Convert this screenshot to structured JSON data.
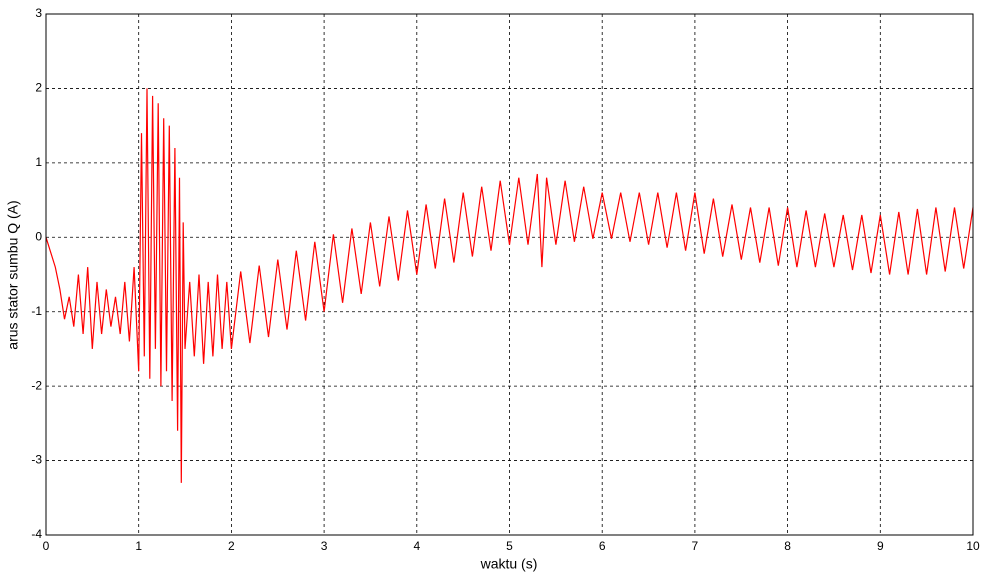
{
  "chart_data": {
    "type": "line",
    "xlabel": "waktu (s)",
    "ylabel": "arus stator sumbu Q (A)",
    "xlim": [
      0,
      10
    ],
    "xticks": [
      0,
      1,
      2,
      3,
      4,
      5,
      6,
      7,
      8,
      9,
      10
    ],
    "ylim": [
      -4,
      3
    ],
    "yticks": [
      -4,
      -3,
      -2,
      -1,
      0,
      1,
      2,
      3
    ],
    "grid": true,
    "series": [
      {
        "color": "#ff0000",
        "x": [
          0,
          0.1,
          0.15,
          0.2,
          0.25,
          0.3,
          0.35,
          0.4,
          0.45,
          0.5,
          0.55,
          0.6,
          0.65,
          0.7,
          0.75,
          0.8,
          0.85,
          0.9,
          0.95,
          1.0,
          1.03,
          1.06,
          1.09,
          1.12,
          1.15,
          1.18,
          1.21,
          1.24,
          1.27,
          1.3,
          1.33,
          1.36,
          1.39,
          1.42,
          1.44,
          1.46,
          1.48,
          1.5,
          1.55,
          1.6,
          1.65,
          1.7,
          1.75,
          1.8,
          1.85,
          1.9,
          1.95,
          2.0,
          2.1,
          2.2,
          2.3,
          2.4,
          2.5,
          2.6,
          2.7,
          2.8,
          2.9,
          3.0,
          3.1,
          3.2,
          3.3,
          3.4,
          3.5,
          3.6,
          3.7,
          3.8,
          3.9,
          4.0,
          4.1,
          4.2,
          4.3,
          4.4,
          4.5,
          4.6,
          4.7,
          4.8,
          4.9,
          5.0,
          5.1,
          5.2,
          5.3,
          5.35,
          5.4,
          5.5,
          5.6,
          5.7,
          5.8,
          5.9,
          6.0,
          6.1,
          6.2,
          6.3,
          6.4,
          6.5,
          6.6,
          6.7,
          6.8,
          6.9,
          7.0,
          7.1,
          7.2,
          7.3,
          7.4,
          7.5,
          7.6,
          7.7,
          7.8,
          7.9,
          8.0,
          8.1,
          8.2,
          8.3,
          8.4,
          8.5,
          8.6,
          8.7,
          8.8,
          8.9,
          9.0,
          9.1,
          9.2,
          9.3,
          9.4,
          9.5,
          9.6,
          9.7,
          9.8,
          9.9,
          10.0
        ],
        "values": [
          0,
          -0.4,
          -0.7,
          -1.1,
          -0.8,
          -1.2,
          -0.5,
          -1.3,
          -0.4,
          -1.5,
          -0.6,
          -1.3,
          -0.7,
          -1.2,
          -0.8,
          -1.3,
          -0.6,
          -1.4,
          -0.4,
          -1.8,
          1.4,
          -1.6,
          2.0,
          -1.9,
          1.9,
          -1.5,
          1.8,
          -2.0,
          1.6,
          -1.8,
          1.5,
          -2.2,
          1.2,
          -2.6,
          0.8,
          -3.3,
          0.2,
          -1.5,
          -0.6,
          -1.6,
          -0.5,
          -1.7,
          -0.6,
          -1.6,
          -0.5,
          -1.5,
          -0.6,
          -1.5,
          -0.46,
          -1.42,
          -0.38,
          -1.34,
          -0.3,
          -1.24,
          -0.18,
          -1.12,
          -0.06,
          -1.0,
          0.04,
          -0.88,
          0.12,
          -0.76,
          0.2,
          -0.66,
          0.28,
          -0.58,
          0.36,
          -0.5,
          0.44,
          -0.42,
          0.52,
          -0.34,
          0.6,
          -0.26,
          0.68,
          -0.18,
          0.76,
          -0.1,
          0.8,
          -0.1,
          0.85,
          -0.4,
          0.8,
          -0.1,
          0.76,
          -0.06,
          0.68,
          -0.02,
          0.6,
          -0.02,
          0.6,
          -0.06,
          0.6,
          -0.1,
          0.6,
          -0.14,
          0.6,
          -0.18,
          0.6,
          -0.22,
          0.52,
          -0.26,
          0.44,
          -0.3,
          0.4,
          -0.34,
          0.4,
          -0.38,
          0.4,
          -0.4,
          0.36,
          -0.4,
          0.32,
          -0.4,
          0.3,
          -0.44,
          0.3,
          -0.48,
          0.3,
          -0.5,
          0.34,
          -0.5,
          0.38,
          -0.5,
          0.4,
          -0.46,
          0.4,
          -0.42,
          0.4
        ]
      }
    ]
  }
}
